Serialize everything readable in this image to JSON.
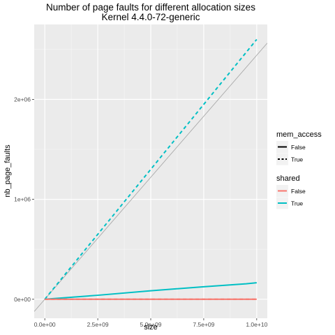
{
  "chart_data": {
    "type": "line",
    "title": "Number of page faults for different allocation sizes",
    "subtitle": "Kernel 4.4.0-72-generic",
    "xlabel": "size",
    "ylabel": "nb_page_faults",
    "xlim": [
      -500000000,
      10500000000
    ],
    "ylim": [
      -190000,
      2750000
    ],
    "x_ticks": [
      0,
      2500000000,
      5000000000,
      7500000000,
      10000000000
    ],
    "x_tick_labels": [
      "0.0e+00",
      "2.5e+09",
      "5.0e+09",
      "7.5e+09",
      "1.0e+10"
    ],
    "y_ticks": [
      0,
      1000000,
      2000000
    ],
    "y_tick_labels": [
      "0e+00",
      "1e+06",
      "2e+06"
    ],
    "grid": true,
    "panel_background": "#ebebeb",
    "legend_position": "right",
    "legends": [
      {
        "title": "mem_access",
        "entries": [
          {
            "label": "False",
            "linetype": "solid",
            "color": "#000000"
          },
          {
            "label": "True",
            "linetype": "dashed",
            "color": "#000000"
          }
        ]
      },
      {
        "title": "shared",
        "entries": [
          {
            "label": "False",
            "color": "#f8766d"
          },
          {
            "label": "True",
            "color": "#00bfc4"
          }
        ]
      }
    ],
    "reference_line": {
      "slope": 0.000244140625,
      "intercept": 0,
      "color": "#aaaaaa"
    },
    "series": [
      {
        "mem_access": "True",
        "shared": "True",
        "linetype": "dashed",
        "color": "#00bfc4",
        "x": [
          0,
          2500000000,
          5000000000,
          7500000000,
          10000000000
        ],
        "y": [
          0,
          650000,
          1300000,
          1950000,
          2600000
        ]
      },
      {
        "mem_access": "True",
        "shared": "False",
        "linetype": "dashed",
        "color": "#f8766d",
        "x": [
          0,
          2500000000,
          5000000000,
          7500000000,
          10000000000
        ],
        "y": [
          0,
          0,
          0,
          0,
          0
        ]
      },
      {
        "mem_access": "False",
        "shared": "True",
        "linetype": "solid",
        "color": "#00bfc4",
        "x": [
          0,
          2500000000,
          5000000000,
          7500000000,
          9500000000,
          10000000000
        ],
        "y": [
          0,
          40000,
          85000,
          125000,
          155000,
          165000
        ]
      },
      {
        "mem_access": "False",
        "shared": "False",
        "linetype": "solid",
        "color": "#f8766d",
        "x": [
          0,
          2500000000,
          5000000000,
          7500000000,
          10000000000
        ],
        "y": [
          0,
          0,
          0,
          0,
          0
        ]
      }
    ]
  }
}
